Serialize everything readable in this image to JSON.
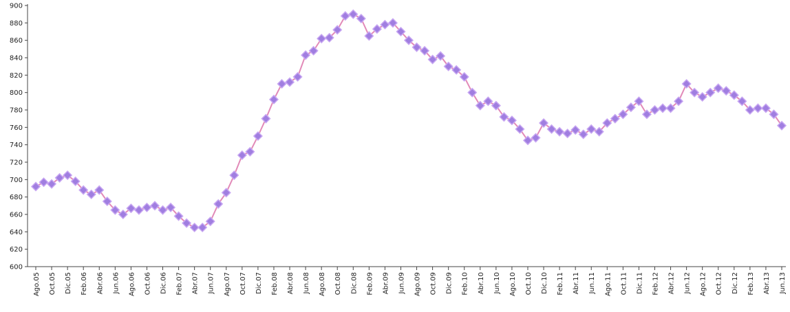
{
  "chart_data": {
    "type": "line",
    "categories": [
      "Ago.05",
      null,
      "Oct.05",
      null,
      "Dic.05",
      null,
      "Feb.06",
      null,
      "Abr.06",
      null,
      "Jun.06",
      null,
      "Ago.06",
      null,
      "Oct.06",
      null,
      "Dic.06",
      null,
      "Feb.07",
      null,
      "Abr.07",
      null,
      "Jun.07",
      null,
      "Ago.07",
      null,
      "Oct.07",
      null,
      "Dic.07",
      null,
      "Feb.08",
      null,
      "Abr.08",
      null,
      "Jun.08",
      null,
      "Ago.08",
      null,
      "Oct.08",
      null,
      "Dic.08",
      null,
      "Feb.09",
      null,
      "Abr.09",
      null,
      "Jun.09",
      null,
      "Ago.09",
      null,
      "Oct.09",
      null,
      "Dic.09",
      null,
      "Feb.10",
      null,
      "Abr.10",
      null,
      "Jun.10",
      null,
      "Ago.10",
      null,
      "Oct.10",
      null,
      "Dic.10",
      null,
      "Feb.11",
      null,
      "Abr.11",
      null,
      "Jun.11",
      null,
      "Ago.11",
      null,
      "Oct.11",
      null,
      "Dic.11",
      null,
      "Feb.12",
      null,
      "Abr.12",
      null,
      "Jun.12",
      null,
      "Ago.12",
      null,
      "Oct.12",
      null,
      "Dic.12",
      null,
      "Feb.13",
      null,
      "Abr.13",
      null,
      "Jun.13"
    ],
    "series": [
      {
        "color": "#a07ee0",
        "values": [
          692,
          697,
          695,
          702,
          705,
          698,
          688,
          683,
          688,
          675,
          665,
          660,
          667,
          665,
          668,
          670,
          665,
          668,
          658,
          650,
          645,
          645,
          652,
          672,
          685,
          705,
          728,
          732,
          750,
          770,
          792,
          810,
          812,
          818,
          843,
          848,
          862,
          863,
          872,
          888,
          890,
          885,
          865,
          873,
          878,
          880,
          870,
          860,
          852,
          848,
          838,
          842,
          830,
          826,
          818,
          800,
          785,
          790,
          785,
          772,
          768,
          758,
          745,
          748,
          765,
          758,
          755,
          753,
          757,
          752,
          758,
          755,
          765,
          770,
          775,
          783,
          790,
          775,
          780,
          782,
          782,
          790,
          810,
          800,
          795,
          800,
          805,
          802,
          797,
          790,
          780,
          782,
          782,
          775,
          762
        ]
      }
    ],
    "ylim": [
      600,
      900
    ],
    "yticks": [
      600,
      620,
      640,
      660,
      680,
      700,
      720,
      740,
      760,
      780,
      800,
      820,
      840,
      860,
      880,
      900
    ]
  }
}
